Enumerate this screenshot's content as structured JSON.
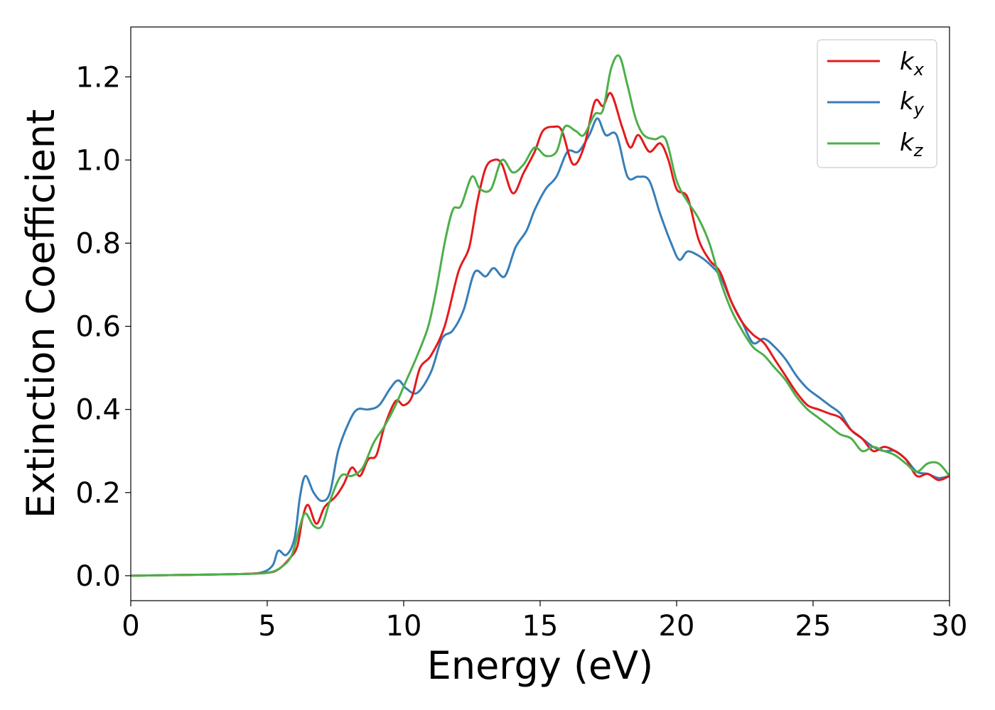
{
  "chart_data": {
    "type": "line",
    "xlabel": "Energy (eV)",
    "ylabel": "Extinction Coefficient",
    "xlim": [
      0,
      30
    ],
    "ylim": [
      -0.06,
      1.32
    ],
    "xticks": [
      0,
      5,
      10,
      15,
      20,
      25,
      30
    ],
    "yticks": [
      0.0,
      0.2,
      0.4,
      0.6,
      0.8,
      1.0,
      1.2
    ],
    "grid": false,
    "legend_position": "top-right",
    "series": [
      {
        "name": "k_x",
        "label_main": "k",
        "label_sub": "x",
        "color": "#e41a1c",
        "points": [
          [
            0,
            0.0
          ],
          [
            2,
            0.002
          ],
          [
            4,
            0.004
          ],
          [
            5,
            0.007
          ],
          [
            5.4,
            0.015
          ],
          [
            5.8,
            0.04
          ],
          [
            6.1,
            0.07
          ],
          [
            6.3,
            0.14
          ],
          [
            6.5,
            0.17
          ],
          [
            6.8,
            0.125
          ],
          [
            7.1,
            0.165
          ],
          [
            7.5,
            0.19
          ],
          [
            7.8,
            0.22
          ],
          [
            8.1,
            0.26
          ],
          [
            8.4,
            0.24
          ],
          [
            8.7,
            0.28
          ],
          [
            9.0,
            0.29
          ],
          [
            9.3,
            0.36
          ],
          [
            9.7,
            0.42
          ],
          [
            10.0,
            0.41
          ],
          [
            10.3,
            0.43
          ],
          [
            10.6,
            0.5
          ],
          [
            11.0,
            0.53
          ],
          [
            11.5,
            0.6
          ],
          [
            12.0,
            0.73
          ],
          [
            12.4,
            0.79
          ],
          [
            12.7,
            0.9
          ],
          [
            13.0,
            0.98
          ],
          [
            13.3,
            1.0
          ],
          [
            13.6,
            0.99
          ],
          [
            14.0,
            0.92
          ],
          [
            14.4,
            0.97
          ],
          [
            14.8,
            1.02
          ],
          [
            15.1,
            1.07
          ],
          [
            15.5,
            1.08
          ],
          [
            15.8,
            1.07
          ],
          [
            16.2,
            0.99
          ],
          [
            16.6,
            1.03
          ],
          [
            17.0,
            1.14
          ],
          [
            17.3,
            1.13
          ],
          [
            17.6,
            1.16
          ],
          [
            18.0,
            1.08
          ],
          [
            18.3,
            1.03
          ],
          [
            18.6,
            1.06
          ],
          [
            19.0,
            1.02
          ],
          [
            19.4,
            1.04
          ],
          [
            19.7,
            1.0
          ],
          [
            20.0,
            0.93
          ],
          [
            20.4,
            0.91
          ],
          [
            20.8,
            0.81
          ],
          [
            21.2,
            0.76
          ],
          [
            21.6,
            0.73
          ],
          [
            22.0,
            0.66
          ],
          [
            22.4,
            0.61
          ],
          [
            22.8,
            0.58
          ],
          [
            23.2,
            0.56
          ],
          [
            23.6,
            0.52
          ],
          [
            24.0,
            0.48
          ],
          [
            24.4,
            0.44
          ],
          [
            24.8,
            0.41
          ],
          [
            25.2,
            0.4
          ],
          [
            25.6,
            0.39
          ],
          [
            26.0,
            0.38
          ],
          [
            26.4,
            0.35
          ],
          [
            26.8,
            0.33
          ],
          [
            27.2,
            0.3
          ],
          [
            27.6,
            0.31
          ],
          [
            28.0,
            0.3
          ],
          [
            28.4,
            0.28
          ],
          [
            28.8,
            0.24
          ],
          [
            29.2,
            0.245
          ],
          [
            29.6,
            0.23
          ],
          [
            30.0,
            0.24
          ]
        ]
      },
      {
        "name": "k_y",
        "label_main": "k",
        "label_sub": "y",
        "color": "#377eb8",
        "points": [
          [
            0,
            0.0
          ],
          [
            2,
            0.002
          ],
          [
            4,
            0.004
          ],
          [
            4.8,
            0.008
          ],
          [
            5.2,
            0.025
          ],
          [
            5.4,
            0.06
          ],
          [
            5.7,
            0.05
          ],
          [
            6.0,
            0.09
          ],
          [
            6.2,
            0.19
          ],
          [
            6.4,
            0.24
          ],
          [
            6.7,
            0.2
          ],
          [
            7.0,
            0.18
          ],
          [
            7.3,
            0.2
          ],
          [
            7.6,
            0.3
          ],
          [
            8.0,
            0.37
          ],
          [
            8.3,
            0.4
          ],
          [
            8.7,
            0.4
          ],
          [
            9.1,
            0.41
          ],
          [
            9.5,
            0.45
          ],
          [
            9.8,
            0.47
          ],
          [
            10.1,
            0.45
          ],
          [
            10.5,
            0.44
          ],
          [
            11.0,
            0.49
          ],
          [
            11.4,
            0.57
          ],
          [
            11.8,
            0.59
          ],
          [
            12.2,
            0.64
          ],
          [
            12.6,
            0.73
          ],
          [
            13.0,
            0.72
          ],
          [
            13.3,
            0.74
          ],
          [
            13.7,
            0.72
          ],
          [
            14.1,
            0.79
          ],
          [
            14.5,
            0.83
          ],
          [
            14.8,
            0.88
          ],
          [
            15.2,
            0.93
          ],
          [
            15.6,
            0.96
          ],
          [
            16.0,
            1.02
          ],
          [
            16.4,
            1.02
          ],
          [
            16.8,
            1.06
          ],
          [
            17.1,
            1.1
          ],
          [
            17.4,
            1.06
          ],
          [
            17.8,
            1.06
          ],
          [
            18.2,
            0.96
          ],
          [
            18.6,
            0.96
          ],
          [
            19.0,
            0.95
          ],
          [
            19.4,
            0.87
          ],
          [
            19.8,
            0.8
          ],
          [
            20.1,
            0.76
          ],
          [
            20.4,
            0.78
          ],
          [
            20.8,
            0.77
          ],
          [
            21.2,
            0.75
          ],
          [
            21.6,
            0.72
          ],
          [
            22.0,
            0.66
          ],
          [
            22.4,
            0.61
          ],
          [
            22.8,
            0.56
          ],
          [
            23.2,
            0.57
          ],
          [
            23.6,
            0.55
          ],
          [
            24.0,
            0.52
          ],
          [
            24.4,
            0.48
          ],
          [
            24.8,
            0.45
          ],
          [
            25.2,
            0.43
          ],
          [
            25.6,
            0.41
          ],
          [
            26.0,
            0.39
          ],
          [
            26.4,
            0.35
          ],
          [
            26.8,
            0.33
          ],
          [
            27.2,
            0.31
          ],
          [
            27.6,
            0.3
          ],
          [
            28.0,
            0.3
          ],
          [
            28.4,
            0.28
          ],
          [
            28.8,
            0.25
          ],
          [
            29.2,
            0.245
          ],
          [
            29.6,
            0.235
          ],
          [
            30.0,
            0.24
          ]
        ]
      },
      {
        "name": "k_z",
        "label_main": "k",
        "label_sub": "z",
        "color": "#4daf4a",
        "points": [
          [
            0,
            0.0
          ],
          [
            2,
            0.002
          ],
          [
            4,
            0.004
          ],
          [
            5,
            0.007
          ],
          [
            5.5,
            0.02
          ],
          [
            5.9,
            0.05
          ],
          [
            6.2,
            0.12
          ],
          [
            6.4,
            0.15
          ],
          [
            6.7,
            0.12
          ],
          [
            7.0,
            0.12
          ],
          [
            7.3,
            0.18
          ],
          [
            7.7,
            0.24
          ],
          [
            8.1,
            0.24
          ],
          [
            8.5,
            0.26
          ],
          [
            8.9,
            0.32
          ],
          [
            9.3,
            0.36
          ],
          [
            9.7,
            0.41
          ],
          [
            10.1,
            0.47
          ],
          [
            10.5,
            0.53
          ],
          [
            10.9,
            0.6
          ],
          [
            11.2,
            0.69
          ],
          [
            11.5,
            0.8
          ],
          [
            11.8,
            0.88
          ],
          [
            12.1,
            0.89
          ],
          [
            12.5,
            0.96
          ],
          [
            12.8,
            0.93
          ],
          [
            13.2,
            0.93
          ],
          [
            13.6,
            1.0
          ],
          [
            14.0,
            0.97
          ],
          [
            14.4,
            0.99
          ],
          [
            14.8,
            1.03
          ],
          [
            15.2,
            1.01
          ],
          [
            15.6,
            1.02
          ],
          [
            15.9,
            1.08
          ],
          [
            16.3,
            1.07
          ],
          [
            16.6,
            1.06
          ],
          [
            17.0,
            1.11
          ],
          [
            17.3,
            1.12
          ],
          [
            17.6,
            1.22
          ],
          [
            17.9,
            1.25
          ],
          [
            18.2,
            1.18
          ],
          [
            18.5,
            1.1
          ],
          [
            18.8,
            1.06
          ],
          [
            19.2,
            1.05
          ],
          [
            19.6,
            1.05
          ],
          [
            20.0,
            0.95
          ],
          [
            20.4,
            0.9
          ],
          [
            20.8,
            0.86
          ],
          [
            21.2,
            0.8
          ],
          [
            21.6,
            0.71
          ],
          [
            22.0,
            0.64
          ],
          [
            22.4,
            0.59
          ],
          [
            22.8,
            0.55
          ],
          [
            23.2,
            0.53
          ],
          [
            23.6,
            0.5
          ],
          [
            24.0,
            0.47
          ],
          [
            24.4,
            0.43
          ],
          [
            24.8,
            0.4
          ],
          [
            25.2,
            0.38
          ],
          [
            25.6,
            0.36
          ],
          [
            26.0,
            0.34
          ],
          [
            26.4,
            0.33
          ],
          [
            26.8,
            0.3
          ],
          [
            27.2,
            0.31
          ],
          [
            27.6,
            0.3
          ],
          [
            28.0,
            0.29
          ],
          [
            28.4,
            0.27
          ],
          [
            28.8,
            0.25
          ],
          [
            29.2,
            0.27
          ],
          [
            29.6,
            0.27
          ],
          [
            30.0,
            0.24
          ]
        ]
      }
    ]
  }
}
